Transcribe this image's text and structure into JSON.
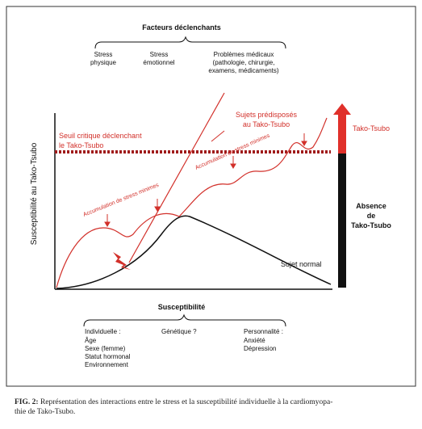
{
  "header": {
    "title": "Facteurs déclenchants"
  },
  "triggers": [
    {
      "lines": [
        "Stress",
        "physique"
      ]
    },
    {
      "lines": [
        "Stress",
        "émotionnel"
      ]
    },
    {
      "lines": [
        "Problèmes médicaux",
        "(pathologie, chirurgie,",
        "examens, médicaments)"
      ]
    }
  ],
  "axis": {
    "y_label": "Susceptibilité au Tako-Tsubo"
  },
  "annotations": {
    "threshold": [
      "Seuil critique déclenchant",
      "le Tako-Tsubo"
    ],
    "predisposed": [
      "Sujets prédisposés",
      "au Tako-Tsubo"
    ],
    "accumulation_1": "Accumulation de stress minimes",
    "accumulation_2": "Accumulation de stress minimes",
    "normal": "Sujet normal"
  },
  "scale": {
    "top": "Tako-Tsubo",
    "bottom": [
      "Absence",
      "de",
      "Tako-Tsubo"
    ]
  },
  "susceptibility": {
    "title": "Susceptibilité",
    "groups": [
      {
        "heading": "Individuelle :",
        "items": [
          "Âge",
          "Sexe (femme)",
          "Statut hormonal",
          "Environnement"
        ]
      },
      {
        "heading": "Génétique ?",
        "items": []
      },
      {
        "heading": "Personnalité :",
        "items": [
          "Anxiété",
          "Dépression"
        ]
      }
    ]
  },
  "caption": {
    "label": "FIG. 2:",
    "lines": [
      " Représentation des interactions entre le stress et la susceptibilité individuelle à la cardiomyopa-",
      "thie de Tako-Tsubo."
    ]
  }
}
